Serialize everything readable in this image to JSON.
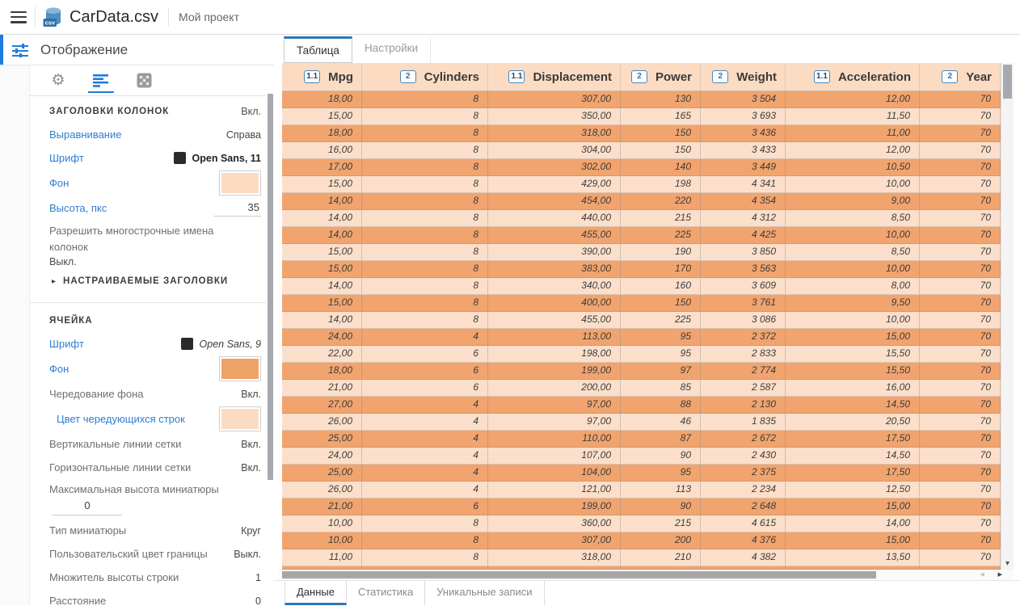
{
  "app": {
    "title": "CarData.csv",
    "project": "Мой проект"
  },
  "icons": {
    "menu": "hamburger-icon",
    "file": "csv-database-icon",
    "panel": "sliders-icon",
    "toolbar": [
      "gear-icon",
      "align-left-icon",
      "dice-grid-icon"
    ],
    "collapse": "triangle-right-icon",
    "decimal": "decimal-1.1-icon",
    "integer": "integer-2-icon",
    "scroll_down": "chevron-down-icon",
    "scroll_left": "chevron-left-icon",
    "scroll_right": "chevron-right-icon"
  },
  "colors": {
    "accent_blue": "#1e7ce0",
    "tab_accent": "#2e75b6",
    "link_blue": "#2d7dd2",
    "header_bg": "#fbdcc3",
    "row_odd": "#f1a46e",
    "row_even": "#fcdfca",
    "cell_bg_swatch": "#efa266",
    "alt_row_swatch": "#fbdcc3",
    "header_bg_swatch": "#fbdcc3",
    "font_swatch": "#2b2b2b"
  },
  "display_panel": {
    "title": "Отображение",
    "groups": [
      {
        "title": "ЗАГОЛОВКИ КОЛОНОК",
        "state": "Вкл.",
        "rows": [
          {
            "name": "alignment",
            "type": "link-text",
            "label": "Выравнивание",
            "value": "Справа"
          },
          {
            "name": "header-font",
            "type": "font",
            "label": "Шрифт",
            "value": "Open Sans, 11",
            "style": "bold",
            "swatch": "#2b2b2b"
          },
          {
            "name": "header-background",
            "type": "swatch",
            "label": "Фон",
            "swatch": "#fbdcc3"
          },
          {
            "name": "header-height",
            "type": "input",
            "label": "Высота, пкс",
            "value": "35"
          },
          {
            "name": "multiline-column-names",
            "type": "toggle-below",
            "label": "Разрешить многострочные имена колонок",
            "value": "Выкл."
          },
          {
            "name": "custom-headers",
            "type": "collapsed",
            "label": "НАСТРАИВАЕМЫЕ ЗАГОЛОВКИ"
          }
        ]
      },
      {
        "title": "ЯЧЕЙКА",
        "rows": [
          {
            "name": "cell-font",
            "type": "font",
            "label": "Шрифт",
            "value": "Open Sans, 9",
            "style": "italic",
            "swatch": "#2b2b2b"
          },
          {
            "name": "cell-background",
            "type": "swatch",
            "label": "Фон",
            "swatch": "#efa266"
          },
          {
            "name": "alternate-background",
            "type": "plain-text",
            "label": "Чередование фона",
            "value": "Вкл."
          },
          {
            "name": "alternate-row-color",
            "type": "swatch",
            "label": "Цвет чередующихся строк",
            "swatch": "#fbdcc3",
            "indent": true
          },
          {
            "name": "vertical-gridlines",
            "type": "plain-text",
            "label": "Вертикальные линии сетки",
            "value": "Вкл."
          },
          {
            "name": "horizontal-gridlines",
            "type": "plain-text",
            "label": "Горизонтальные линии сетки",
            "value": "Вкл."
          },
          {
            "name": "max-thumbnail-height",
            "type": "label-input-below",
            "label": "Максимальная высота миниатюры",
            "value": "0"
          },
          {
            "name": "thumbnail-type",
            "type": "plain-text",
            "label": "Тип миниатюры",
            "value": "Круг"
          },
          {
            "name": "custom-border-color",
            "type": "plain-text",
            "label": "Пользовательский цвет границы",
            "value": "Выкл."
          },
          {
            "name": "row-height-multiplier",
            "type": "plain-text",
            "label": "Множитель высоты строки",
            "value": "1"
          },
          {
            "name": "spacing",
            "type": "plain-text",
            "label": "Расстояние",
            "value": "0"
          }
        ]
      }
    ]
  },
  "main": {
    "tabs": [
      {
        "label": "Таблица",
        "active": true
      },
      {
        "label": "Настройки",
        "active": false
      }
    ],
    "bottom_tabs": [
      {
        "label": "Данные",
        "active": true
      },
      {
        "label": "Статистика",
        "active": false
      },
      {
        "label": "Уникальные записи",
        "active": false
      }
    ]
  },
  "table": {
    "columns": [
      {
        "label": "Mpg",
        "icon_text": "1.1",
        "type": "decimal"
      },
      {
        "label": "Cylinders",
        "icon_text": "2",
        "type": "integer"
      },
      {
        "label": "Displacement",
        "icon_text": "1.1",
        "type": "decimal"
      },
      {
        "label": "Power",
        "icon_text": "2",
        "type": "integer"
      },
      {
        "label": "Weight",
        "icon_text": "2",
        "type": "integer"
      },
      {
        "label": "Acceleration",
        "icon_text": "1.1",
        "type": "decimal"
      },
      {
        "label": "Year",
        "icon_text": "2",
        "type": "integer"
      }
    ],
    "rows": [
      [
        "18,00",
        "8",
        "307,00",
        "130",
        "3 504",
        "12,00",
        "70"
      ],
      [
        "15,00",
        "8",
        "350,00",
        "165",
        "3 693",
        "11,50",
        "70"
      ],
      [
        "18,00",
        "8",
        "318,00",
        "150",
        "3 436",
        "11,00",
        "70"
      ],
      [
        "16,00",
        "8",
        "304,00",
        "150",
        "3 433",
        "12,00",
        "70"
      ],
      [
        "17,00",
        "8",
        "302,00",
        "140",
        "3 449",
        "10,50",
        "70"
      ],
      [
        "15,00",
        "8",
        "429,00",
        "198",
        "4 341",
        "10,00",
        "70"
      ],
      [
        "14,00",
        "8",
        "454,00",
        "220",
        "4 354",
        "9,00",
        "70"
      ],
      [
        "14,00",
        "8",
        "440,00",
        "215",
        "4 312",
        "8,50",
        "70"
      ],
      [
        "14,00",
        "8",
        "455,00",
        "225",
        "4 425",
        "10,00",
        "70"
      ],
      [
        "15,00",
        "8",
        "390,00",
        "190",
        "3 850",
        "8,50",
        "70"
      ],
      [
        "15,00",
        "8",
        "383,00",
        "170",
        "3 563",
        "10,00",
        "70"
      ],
      [
        "14,00",
        "8",
        "340,00",
        "160",
        "3 609",
        "8,00",
        "70"
      ],
      [
        "15,00",
        "8",
        "400,00",
        "150",
        "3 761",
        "9,50",
        "70"
      ],
      [
        "14,00",
        "8",
        "455,00",
        "225",
        "3 086",
        "10,00",
        "70"
      ],
      [
        "24,00",
        "4",
        "113,00",
        "95",
        "2 372",
        "15,00",
        "70"
      ],
      [
        "22,00",
        "6",
        "198,00",
        "95",
        "2 833",
        "15,50",
        "70"
      ],
      [
        "18,00",
        "6",
        "199,00",
        "97",
        "2 774",
        "15,50",
        "70"
      ],
      [
        "21,00",
        "6",
        "200,00",
        "85",
        "2 587",
        "16,00",
        "70"
      ],
      [
        "27,00",
        "4",
        "97,00",
        "88",
        "2 130",
        "14,50",
        "70"
      ],
      [
        "26,00",
        "4",
        "97,00",
        "46",
        "1 835",
        "20,50",
        "70"
      ],
      [
        "25,00",
        "4",
        "110,00",
        "87",
        "2 672",
        "17,50",
        "70"
      ],
      [
        "24,00",
        "4",
        "107,00",
        "90",
        "2 430",
        "14,50",
        "70"
      ],
      [
        "25,00",
        "4",
        "104,00",
        "95",
        "2 375",
        "17,50",
        "70"
      ],
      [
        "26,00",
        "4",
        "121,00",
        "113",
        "2 234",
        "12,50",
        "70"
      ],
      [
        "21,00",
        "6",
        "199,00",
        "90",
        "2 648",
        "15,00",
        "70"
      ],
      [
        "10,00",
        "8",
        "360,00",
        "215",
        "4 615",
        "14,00",
        "70"
      ],
      [
        "10,00",
        "8",
        "307,00",
        "200",
        "4 376",
        "15,00",
        "70"
      ],
      [
        "11,00",
        "8",
        "318,00",
        "210",
        "4 382",
        "13,50",
        "70"
      ]
    ]
  }
}
